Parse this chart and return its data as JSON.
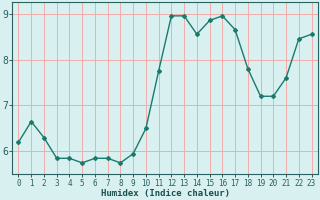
{
  "x": [
    0,
    1,
    2,
    3,
    4,
    5,
    6,
    7,
    8,
    9,
    10,
    11,
    12,
    13,
    14,
    15,
    16,
    17,
    18,
    19,
    20,
    21,
    22,
    23
  ],
  "y": [
    6.2,
    6.65,
    6.3,
    5.85,
    5.85,
    5.75,
    5.85,
    5.85,
    5.75,
    5.95,
    6.5,
    7.75,
    8.95,
    8.95,
    8.55,
    8.85,
    8.95,
    8.65,
    7.8,
    7.2,
    7.2,
    7.6,
    8.45,
    8.55
  ],
  "line_color": "#1a7a6e",
  "marker": "D",
  "markersize": 2.0,
  "linewidth": 1.0,
  "xlabel": "Humidex (Indice chaleur)",
  "xlabel_fontsize": 6.5,
  "xlim": [
    -0.5,
    23.5
  ],
  "ylim": [
    5.5,
    9.25
  ],
  "yticks": [
    6,
    7,
    8,
    9
  ],
  "xticks": [
    0,
    1,
    2,
    3,
    4,
    5,
    6,
    7,
    8,
    9,
    10,
    11,
    12,
    13,
    14,
    15,
    16,
    17,
    18,
    19,
    20,
    21,
    22,
    23
  ],
  "grid_color": "#f2aaaa",
  "bg_color": "#d8f0f0",
  "tick_fontsize": 5.5,
  "ytick_fontsize": 7.0,
  "tick_color": "#2a6060",
  "axis_color": "#2a6060",
  "label_color": "#1a5050"
}
